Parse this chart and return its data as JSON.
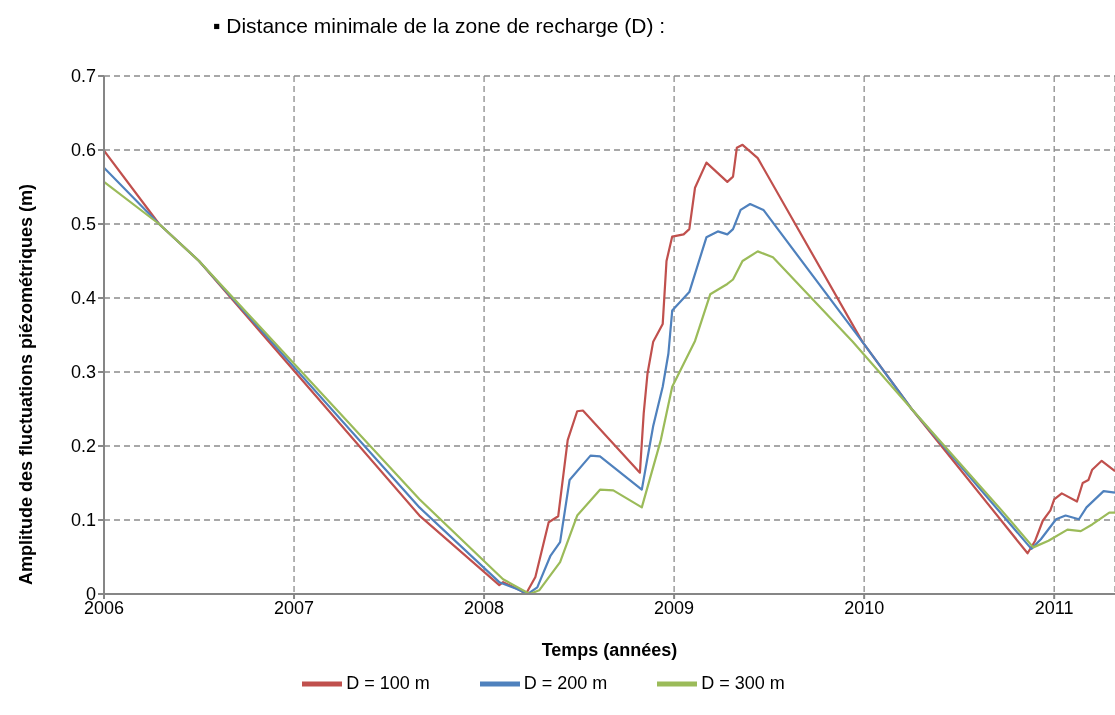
{
  "chart_data": {
    "type": "line",
    "title": "▪ Distance minimale de la zone de recharge (D) :",
    "xlabel": "Temps (années)",
    "ylabel": "Amplitude des fluctuations piézométriques (m)",
    "xlim": [
      2006,
      2011.32
    ],
    "xticks": [
      2006,
      2007,
      2008,
      2009,
      2010,
      2011
    ],
    "ylim": [
      0,
      0.7
    ],
    "yticks": [
      0,
      0.1,
      0.2,
      0.3,
      0.4,
      0.5,
      0.6,
      0.7
    ],
    "grid": true,
    "legend": "bottom",
    "marker": "none",
    "line_style": "solid",
    "series": [
      {
        "name": "D = 100 m",
        "color": "#c0504d",
        "x": [
          2006,
          2006.29,
          2006.5,
          2007.66,
          2008.08,
          2008.1,
          2008.19,
          2008.22,
          2008.27,
          2008.34,
          2008.39,
          2008.44,
          2008.49,
          2008.52,
          2008.82,
          2008.84,
          2008.86,
          2008.89,
          2008.94,
          2008.96,
          2008.99,
          2009.05,
          2009.08,
          2009.11,
          2009.17,
          2009.28,
          2009.31,
          2009.33,
          2009.36,
          2009.44,
          2009.99,
          2010.25,
          2010.86,
          2010.9,
          2010.94,
          2010.98,
          2011,
          2011.04,
          2011.12,
          2011.15,
          2011.18,
          2011.2,
          2011.25,
          2011.32
        ],
        "values": [
          0.599,
          0.5,
          0.45,
          0.106,
          0.012,
          0.016,
          0.005,
          0,
          0.023,
          0.097,
          0.105,
          0.208,
          0.247,
          0.248,
          0.164,
          0.244,
          0.298,
          0.341,
          0.365,
          0.45,
          0.483,
          0.486,
          0.493,
          0.549,
          0.583,
          0.557,
          0.564,
          0.603,
          0.607,
          0.589,
          0.341,
          0.25,
          0.055,
          0.072,
          0.099,
          0.113,
          0.128,
          0.136,
          0.125,
          0.15,
          0.154,
          0.168,
          0.18,
          0.166
        ]
      },
      {
        "name": "D = 200 m",
        "color": "#4f81bd",
        "x": [
          2006,
          2006.29,
          2006.5,
          2007.66,
          2008.08,
          2008.17,
          2008.23,
          2008.28,
          2008.35,
          2008.4,
          2008.45,
          2008.56,
          2008.61,
          2008.83,
          2008.89,
          2008.94,
          2008.97,
          2008.99,
          2009.08,
          2009.17,
          2009.23,
          2009.28,
          2009.31,
          2009.35,
          2009.4,
          2009.47,
          2009.99,
          2010.25,
          2010.88,
          2010.93,
          2011.01,
          2011.06,
          2011.13,
          2011.17,
          2011.26,
          2011.32
        ],
        "values": [
          0.576,
          0.5,
          0.45,
          0.117,
          0.016,
          0.007,
          0,
          0.009,
          0.052,
          0.07,
          0.154,
          0.187,
          0.186,
          0.141,
          0.227,
          0.28,
          0.325,
          0.383,
          0.408,
          0.482,
          0.49,
          0.486,
          0.493,
          0.519,
          0.527,
          0.519,
          0.341,
          0.25,
          0.061,
          0.074,
          0.101,
          0.106,
          0.101,
          0.117,
          0.139,
          0.137
        ]
      },
      {
        "name": "D = 300 m",
        "color": "#9bbb59",
        "x": [
          2006,
          2006.29,
          2006.5,
          2007.66,
          2008.1,
          2008.24,
          2008.29,
          2008.4,
          2008.49,
          2008.61,
          2008.68,
          2008.83,
          2008.93,
          2008.99,
          2009.11,
          2009.19,
          2009.28,
          2009.31,
          2009.36,
          2009.44,
          2009.52,
          2009.94,
          2010.25,
          2010.72,
          2010.89,
          2010.97,
          2011.07,
          2011.14,
          2011.2,
          2011.29,
          2011.32
        ],
        "values": [
          0.557,
          0.5,
          0.45,
          0.128,
          0.02,
          0,
          0.005,
          0.043,
          0.106,
          0.141,
          0.14,
          0.117,
          0.208,
          0.28,
          0.342,
          0.405,
          0.419,
          0.425,
          0.45,
          0.463,
          0.455,
          0.341,
          0.25,
          0.114,
          0.063,
          0.072,
          0.087,
          0.085,
          0.094,
          0.11,
          0.11
        ]
      }
    ]
  }
}
